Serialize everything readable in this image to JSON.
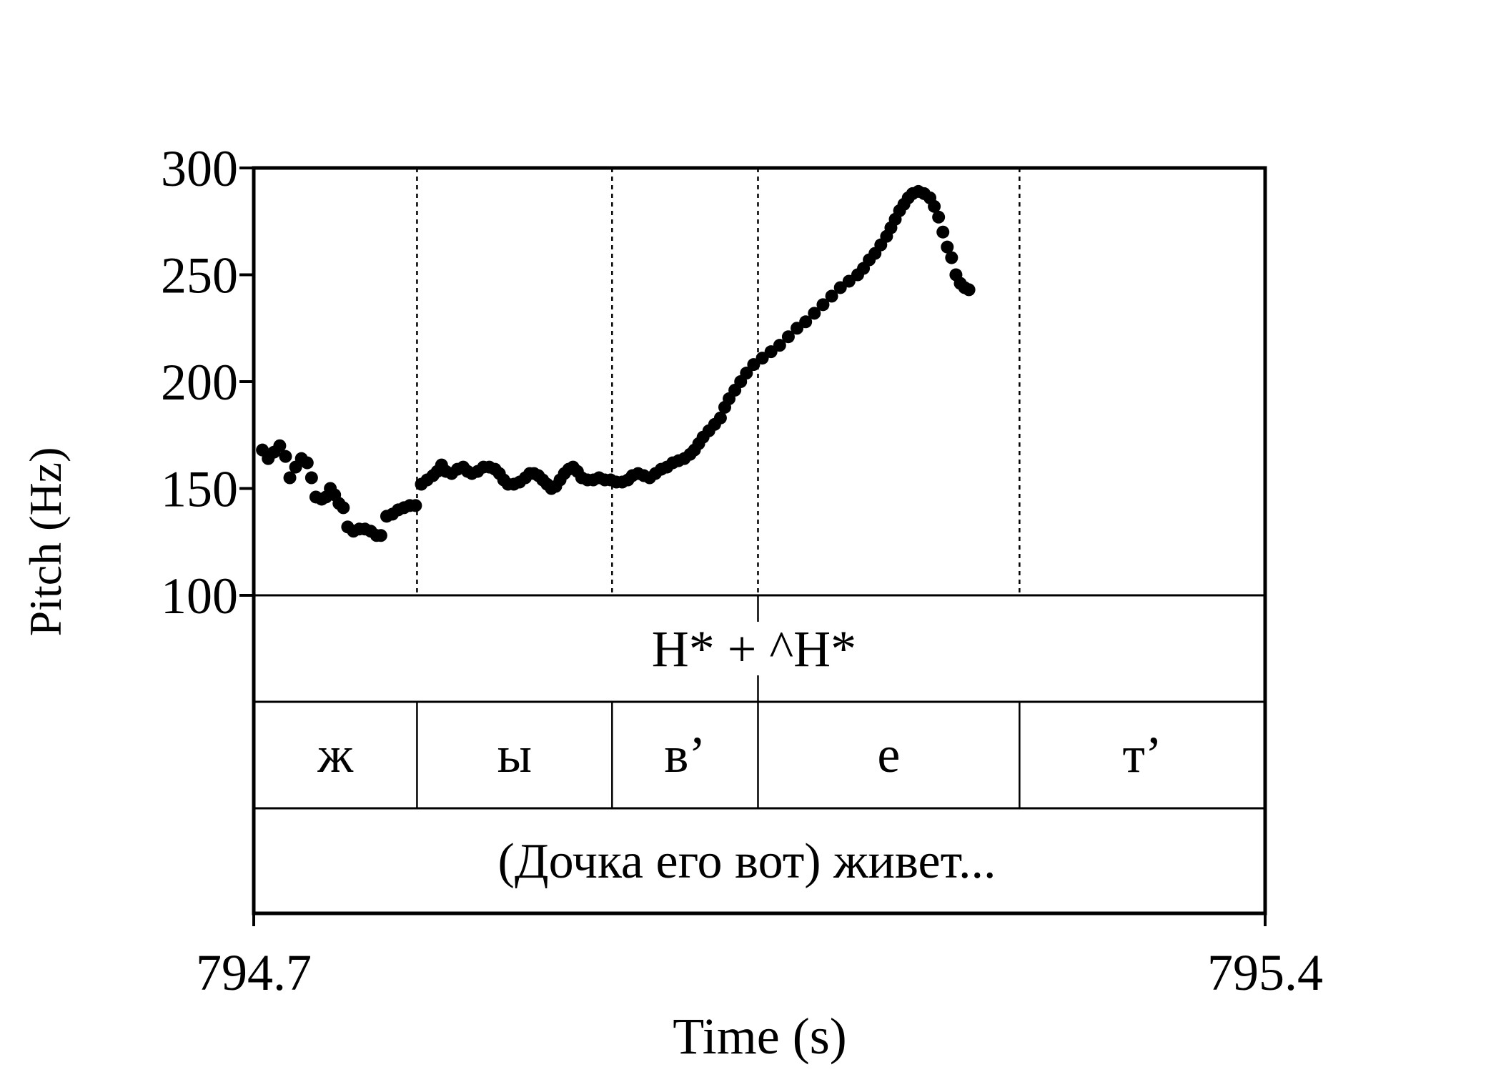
{
  "chart_data": {
    "type": "scatter",
    "xlabel": "Time (s)",
    "ylabel": "Pitch (Hz)",
    "xlim": [
      794.7,
      795.4
    ],
    "ylim": [
      100,
      300
    ],
    "x_ticks": [
      "794.7",
      "795.4"
    ],
    "y_ticks": [
      "100",
      "150",
      "200",
      "250",
      "300"
    ],
    "grid": false,
    "boundaries": [
      794.813,
      794.948,
      795.049,
      795.23
    ],
    "tiers": {
      "tone": {
        "label": "H* + ^H*",
        "boundary": 795.049
      },
      "segments": [
        {
          "label": "ж",
          "start": 794.7,
          "end": 794.813
        },
        {
          "label": "ы",
          "start": 794.813,
          "end": 794.948
        },
        {
          "label": "в’",
          "start": 794.948,
          "end": 795.049
        },
        {
          "label": "е",
          "start": 795.049,
          "end": 795.23
        },
        {
          "label": "т’",
          "start": 795.23,
          "end": 795.4
        }
      ],
      "text": "(Дочка его вот) живет..."
    },
    "pitch_points": [
      [
        794.706,
        168
      ],
      [
        794.71,
        164
      ],
      [
        794.714,
        167
      ],
      [
        794.718,
        170
      ],
      [
        794.722,
        165
      ],
      [
        794.725,
        155
      ],
      [
        794.729,
        160
      ],
      [
        794.733,
        164
      ],
      [
        794.737,
        162
      ],
      [
        794.74,
        155
      ],
      [
        794.743,
        146
      ],
      [
        794.747,
        145
      ],
      [
        794.75,
        146
      ],
      [
        794.753,
        150
      ],
      [
        794.756,
        147
      ],
      [
        794.759,
        143
      ],
      [
        794.762,
        141
      ],
      [
        794.765,
        132
      ],
      [
        794.769,
        130
      ],
      [
        794.773,
        131
      ],
      [
        794.777,
        131
      ],
      [
        794.781,
        130
      ],
      [
        794.785,
        128
      ],
      [
        794.788,
        128
      ],
      [
        794.792,
        137
      ],
      [
        794.796,
        138
      ],
      [
        794.8,
        140
      ],
      [
        794.804,
        141
      ],
      [
        794.808,
        142
      ],
      [
        794.812,
        142
      ],
      [
        794.816,
        152
      ],
      [
        794.82,
        154
      ],
      [
        794.824,
        156
      ],
      [
        794.827,
        158
      ],
      [
        794.83,
        161
      ],
      [
        794.833,
        158
      ],
      [
        794.837,
        157
      ],
      [
        794.841,
        159
      ],
      [
        794.845,
        160
      ],
      [
        794.848,
        158
      ],
      [
        794.851,
        157
      ],
      [
        794.855,
        158
      ],
      [
        794.859,
        160
      ],
      [
        794.863,
        160
      ],
      [
        794.867,
        159
      ],
      [
        794.87,
        157
      ],
      [
        794.873,
        154
      ],
      [
        794.876,
        152
      ],
      [
        794.88,
        152
      ],
      [
        794.884,
        153
      ],
      [
        794.888,
        155
      ],
      [
        794.891,
        157
      ],
      [
        794.894,
        157
      ],
      [
        794.897,
        156
      ],
      [
        794.9,
        154
      ],
      [
        794.903,
        152
      ],
      [
        794.906,
        150
      ],
      [
        794.909,
        151
      ],
      [
        794.912,
        154
      ],
      [
        794.915,
        157
      ],
      [
        794.918,
        159
      ],
      [
        794.921,
        160
      ],
      [
        794.924,
        158
      ],
      [
        794.927,
        155
      ],
      [
        794.931,
        154
      ],
      [
        794.935,
        154
      ],
      [
        794.939,
        155
      ],
      [
        794.943,
        154
      ],
      [
        794.947,
        154
      ],
      [
        794.951,
        153
      ],
      [
        794.955,
        153
      ],
      [
        794.959,
        154
      ],
      [
        794.962,
        156
      ],
      [
        794.966,
        157
      ],
      [
        794.97,
        156
      ],
      [
        794.974,
        155
      ],
      [
        794.978,
        157
      ],
      [
        794.982,
        159
      ],
      [
        794.986,
        160
      ],
      [
        794.99,
        162
      ],
      [
        794.994,
        163
      ],
      [
        794.998,
        164
      ],
      [
        795.002,
        166
      ],
      [
        795.005,
        168
      ],
      [
        795.008,
        171
      ],
      [
        795.011,
        174
      ],
      [
        795.015,
        177
      ],
      [
        795.019,
        180
      ],
      [
        795.023,
        183
      ],
      [
        795.026,
        188
      ],
      [
        795.029,
        192
      ],
      [
        795.033,
        196
      ],
      [
        795.037,
        200
      ],
      [
        795.041,
        204
      ],
      [
        795.046,
        208
      ],
      [
        795.052,
        211
      ],
      [
        795.058,
        214
      ],
      [
        795.064,
        217
      ],
      [
        795.07,
        221
      ],
      [
        795.076,
        225
      ],
      [
        795.082,
        228
      ],
      [
        795.088,
        232
      ],
      [
        795.094,
        236
      ],
      [
        795.1,
        240
      ],
      [
        795.106,
        244
      ],
      [
        795.112,
        247
      ],
      [
        795.118,
        250
      ],
      [
        795.122,
        253
      ],
      [
        795.126,
        257
      ],
      [
        795.13,
        260
      ],
      [
        795.134,
        264
      ],
      [
        795.138,
        268
      ],
      [
        795.141,
        272
      ],
      [
        795.144,
        276
      ],
      [
        795.147,
        280
      ],
      [
        795.15,
        283
      ],
      [
        795.153,
        286
      ],
      [
        795.156,
        288
      ],
      [
        795.16,
        289
      ],
      [
        795.164,
        288
      ],
      [
        795.168,
        286
      ],
      [
        795.171,
        282
      ],
      [
        795.174,
        277
      ],
      [
        795.177,
        270
      ],
      [
        795.18,
        263
      ],
      [
        795.183,
        258
      ],
      [
        795.186,
        250
      ],
      [
        795.189,
        246
      ],
      [
        795.192,
        244
      ],
      [
        795.195,
        243
      ]
    ]
  }
}
